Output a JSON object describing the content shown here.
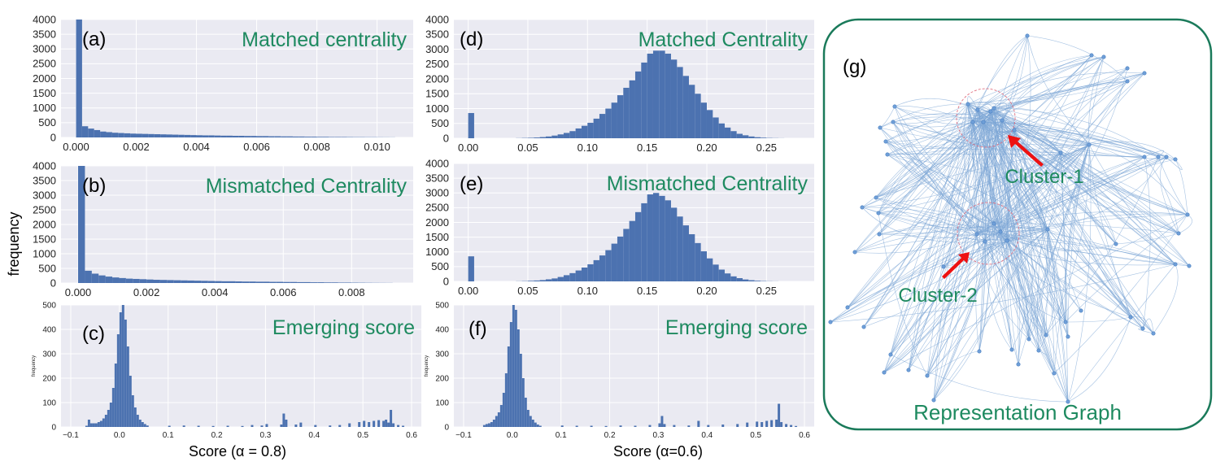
{
  "figure": {
    "shared_ylabel": "frequency",
    "bottom_left_xlabel": "Score (α = 0.8)",
    "bottom_right_xlabel": "Score (α=0.6)"
  },
  "colors": {
    "bar": "#4c72b0",
    "plot_bg": "#eaeaf2",
    "grid": "#ffffff",
    "title": "#1e8a60",
    "graph_border": "#1a7a5a",
    "edge": "#7ea6d6",
    "node": "#6f9fd8",
    "arrow": "#ee1111",
    "cluster_circle": "#e07080"
  },
  "chart_data": [
    {
      "panel": "(a)",
      "type": "bar",
      "title": "Matched centrality",
      "xlim": [
        -0.0005,
        0.0112
      ],
      "ylim": [
        0,
        4000
      ],
      "xticks": [
        "0.000",
        "0.002",
        "0.004",
        "0.006",
        "0.008",
        "0.010"
      ],
      "yticks": [
        "0",
        "500",
        "1000",
        "1500",
        "2000",
        "2500",
        "3000",
        "3500",
        "4000"
      ],
      "bin_width": 0.0002,
      "bins": [
        [
          0.0,
          4000
        ],
        [
          0.0002,
          380
        ],
        [
          0.0004,
          300
        ],
        [
          0.0006,
          250
        ],
        [
          0.0008,
          200
        ],
        [
          0.001,
          180
        ],
        [
          0.0012,
          160
        ],
        [
          0.0014,
          150
        ],
        [
          0.0016,
          140
        ],
        [
          0.0018,
          130
        ],
        [
          0.002,
          125
        ],
        [
          0.0022,
          120
        ],
        [
          0.0024,
          115
        ],
        [
          0.0026,
          110
        ],
        [
          0.0028,
          105
        ],
        [
          0.003,
          100
        ],
        [
          0.0032,
          95
        ],
        [
          0.0034,
          90
        ],
        [
          0.0036,
          85
        ],
        [
          0.0038,
          80
        ],
        [
          0.004,
          75
        ],
        [
          0.0042,
          70
        ],
        [
          0.0044,
          70
        ],
        [
          0.0046,
          65
        ],
        [
          0.0048,
          60
        ],
        [
          0.005,
          60
        ],
        [
          0.0052,
          55
        ],
        [
          0.0054,
          55
        ],
        [
          0.0056,
          50
        ],
        [
          0.0058,
          50
        ],
        [
          0.006,
          45
        ],
        [
          0.0062,
          45
        ],
        [
          0.0064,
          40
        ],
        [
          0.0066,
          40
        ],
        [
          0.0068,
          35
        ],
        [
          0.007,
          35
        ],
        [
          0.0072,
          30
        ],
        [
          0.0074,
          30
        ],
        [
          0.0076,
          25
        ],
        [
          0.0078,
          25
        ],
        [
          0.008,
          20
        ],
        [
          0.0082,
          20
        ],
        [
          0.0084,
          15
        ],
        [
          0.0086,
          15
        ],
        [
          0.0088,
          15
        ],
        [
          0.009,
          12
        ],
        [
          0.0092,
          10
        ],
        [
          0.0094,
          10
        ],
        [
          0.0096,
          8
        ],
        [
          0.0098,
          8
        ],
        [
          0.01,
          6
        ],
        [
          0.0102,
          5
        ],
        [
          0.0104,
          4
        ]
      ]
    },
    {
      "panel": "(b)",
      "type": "bar",
      "title": "Mismatched Centrality",
      "xlim": [
        -0.0005,
        0.0098
      ],
      "ylim": [
        0,
        4000
      ],
      "xticks": [
        "0.000",
        "0.002",
        "0.004",
        "0.006",
        "0.008"
      ],
      "yticks": [
        "0",
        "500",
        "1000",
        "1500",
        "2000",
        "2500",
        "3000",
        "3500",
        "4000"
      ],
      "bin_width": 0.0002,
      "bins": [
        [
          0.0,
          4000
        ],
        [
          0.0002,
          420
        ],
        [
          0.0004,
          320
        ],
        [
          0.0006,
          260
        ],
        [
          0.0008,
          220
        ],
        [
          0.001,
          190
        ],
        [
          0.0012,
          170
        ],
        [
          0.0014,
          150
        ],
        [
          0.0016,
          140
        ],
        [
          0.0018,
          130
        ],
        [
          0.002,
          120
        ],
        [
          0.0022,
          110
        ],
        [
          0.0024,
          105
        ],
        [
          0.0026,
          100
        ],
        [
          0.0028,
          95
        ],
        [
          0.003,
          90
        ],
        [
          0.0032,
          85
        ],
        [
          0.0034,
          80
        ],
        [
          0.0036,
          75
        ],
        [
          0.0038,
          70
        ],
        [
          0.004,
          65
        ],
        [
          0.0042,
          60
        ],
        [
          0.0044,
          60
        ],
        [
          0.0046,
          55
        ],
        [
          0.0048,
          50
        ],
        [
          0.005,
          50
        ],
        [
          0.0052,
          45
        ],
        [
          0.0054,
          45
        ],
        [
          0.0056,
          40
        ],
        [
          0.0058,
          40
        ],
        [
          0.006,
          35
        ],
        [
          0.0062,
          35
        ],
        [
          0.0064,
          30
        ],
        [
          0.0066,
          30
        ],
        [
          0.0068,
          25
        ],
        [
          0.007,
          25
        ],
        [
          0.0072,
          20
        ],
        [
          0.0074,
          20
        ],
        [
          0.0076,
          15
        ],
        [
          0.0078,
          15
        ],
        [
          0.008,
          12
        ],
        [
          0.0082,
          10
        ],
        [
          0.0084,
          8
        ],
        [
          0.0086,
          6
        ],
        [
          0.0088,
          5
        ],
        [
          0.009,
          4
        ]
      ]
    },
    {
      "panel": "(c)",
      "type": "bar",
      "title": "Emerging score",
      "xlim": [
        -0.12,
        0.62
      ],
      "ylim": [
        0,
        500
      ],
      "small_ylabel": "frequency",
      "xticks": [
        "−0.1",
        "0.0",
        "0.1",
        "0.2",
        "0.3",
        "0.4",
        "0.5",
        "0.6"
      ],
      "yticks": [
        "0",
        "100",
        "200",
        "300",
        "400",
        "500"
      ],
      "bin_width": 0.005,
      "bins": [
        [
          -0.07,
          5
        ],
        [
          -0.065,
          30
        ],
        [
          -0.06,
          15
        ],
        [
          -0.055,
          15
        ],
        [
          -0.05,
          15
        ],
        [
          -0.045,
          20
        ],
        [
          -0.04,
          25
        ],
        [
          -0.035,
          35
        ],
        [
          -0.03,
          50
        ],
        [
          -0.025,
          70
        ],
        [
          -0.02,
          100
        ],
        [
          -0.015,
          160
        ],
        [
          -0.01,
          260
        ],
        [
          -0.005,
          380
        ],
        [
          0.0,
          470
        ],
        [
          0.005,
          500
        ],
        [
          0.01,
          440
        ],
        [
          0.015,
          330
        ],
        [
          0.02,
          210
        ],
        [
          0.025,
          130
        ],
        [
          0.03,
          80
        ],
        [
          0.035,
          50
        ],
        [
          0.04,
          30
        ],
        [
          0.045,
          20
        ],
        [
          0.05,
          12
        ],
        [
          0.055,
          6
        ],
        [
          0.1,
          5
        ],
        [
          0.13,
          6
        ],
        [
          0.16,
          5
        ],
        [
          0.19,
          4
        ],
        [
          0.22,
          5
        ],
        [
          0.25,
          4
        ],
        [
          0.27,
          8
        ],
        [
          0.29,
          6
        ],
        [
          0.3,
          12
        ],
        [
          0.33,
          10
        ],
        [
          0.335,
          55
        ],
        [
          0.34,
          30
        ],
        [
          0.36,
          10
        ],
        [
          0.37,
          18
        ],
        [
          0.4,
          8
        ],
        [
          0.43,
          6
        ],
        [
          0.45,
          8
        ],
        [
          0.47,
          15
        ],
        [
          0.49,
          20
        ],
        [
          0.5,
          25
        ],
        [
          0.51,
          20
        ],
        [
          0.52,
          25
        ],
        [
          0.53,
          28
        ],
        [
          0.54,
          25
        ],
        [
          0.545,
          30
        ],
        [
          0.55,
          18
        ],
        [
          0.555,
          70
        ],
        [
          0.56,
          15
        ],
        [
          0.57,
          8
        ],
        [
          0.58,
          5
        ]
      ]
    },
    {
      "panel": "(d)",
      "type": "bar",
      "title": "Matched Centrality",
      "xlim": [
        -0.012,
        0.29
      ],
      "ylim": [
        0,
        4000
      ],
      "xticks": [
        "0.00",
        "0.05",
        "0.10",
        "0.15",
        "0.20",
        "0.25"
      ],
      "yticks": [
        "0",
        "500",
        "1000",
        "1500",
        "2000",
        "2500",
        "3000",
        "3500",
        "4000"
      ],
      "bin_width": 0.005,
      "bins": [
        [
          0.0,
          850
        ],
        [
          0.04,
          5
        ],
        [
          0.045,
          10
        ],
        [
          0.05,
          15
        ],
        [
          0.055,
          25
        ],
        [
          0.06,
          40
        ],
        [
          0.065,
          60
        ],
        [
          0.07,
          90
        ],
        [
          0.075,
          130
        ],
        [
          0.08,
          180
        ],
        [
          0.085,
          240
        ],
        [
          0.09,
          330
        ],
        [
          0.095,
          420
        ],
        [
          0.1,
          520
        ],
        [
          0.105,
          660
        ],
        [
          0.11,
          820
        ],
        [
          0.115,
          1000
        ],
        [
          0.12,
          1200
        ],
        [
          0.125,
          1450
        ],
        [
          0.13,
          1700
        ],
        [
          0.135,
          1950
        ],
        [
          0.14,
          2250
        ],
        [
          0.145,
          2550
        ],
        [
          0.15,
          2850
        ],
        [
          0.155,
          2950
        ],
        [
          0.16,
          2950
        ],
        [
          0.165,
          2850
        ],
        [
          0.17,
          2650
        ],
        [
          0.175,
          2400
        ],
        [
          0.18,
          2100
        ],
        [
          0.185,
          1800
        ],
        [
          0.19,
          1500
        ],
        [
          0.195,
          1200
        ],
        [
          0.2,
          950
        ],
        [
          0.205,
          700
        ],
        [
          0.21,
          500
        ],
        [
          0.215,
          360
        ],
        [
          0.22,
          240
        ],
        [
          0.225,
          150
        ],
        [
          0.23,
          100
        ],
        [
          0.235,
          60
        ],
        [
          0.24,
          35
        ],
        [
          0.245,
          20
        ],
        [
          0.25,
          10
        ],
        [
          0.255,
          6
        ],
        [
          0.26,
          3
        ]
      ]
    },
    {
      "panel": "(e)",
      "type": "bar",
      "title": "Mismatched Centrality",
      "xlim": [
        -0.012,
        0.29
      ],
      "ylim": [
        0,
        4000
      ],
      "xticks": [
        "0.00",
        "0.05",
        "0.10",
        "0.15",
        "0.20",
        "0.25"
      ],
      "yticks": [
        "0",
        "500",
        "1000",
        "1500",
        "2000",
        "2500",
        "3000",
        "3500",
        "4000"
      ],
      "bin_width": 0.005,
      "bins": [
        [
          0.0,
          850
        ],
        [
          0.04,
          5
        ],
        [
          0.045,
          10
        ],
        [
          0.05,
          20
        ],
        [
          0.055,
          30
        ],
        [
          0.06,
          45
        ],
        [
          0.065,
          70
        ],
        [
          0.07,
          100
        ],
        [
          0.075,
          150
        ],
        [
          0.08,
          210
        ],
        [
          0.085,
          280
        ],
        [
          0.09,
          370
        ],
        [
          0.095,
          470
        ],
        [
          0.1,
          580
        ],
        [
          0.105,
          720
        ],
        [
          0.11,
          880
        ],
        [
          0.115,
          1060
        ],
        [
          0.12,
          1280
        ],
        [
          0.125,
          1520
        ],
        [
          0.13,
          1780
        ],
        [
          0.135,
          2050
        ],
        [
          0.14,
          2350
        ],
        [
          0.145,
          2650
        ],
        [
          0.15,
          2950
        ],
        [
          0.155,
          3000
        ],
        [
          0.16,
          2900
        ],
        [
          0.165,
          2750
        ],
        [
          0.17,
          2500
        ],
        [
          0.175,
          2200
        ],
        [
          0.18,
          1900
        ],
        [
          0.185,
          1600
        ],
        [
          0.19,
          1300
        ],
        [
          0.195,
          1020
        ],
        [
          0.2,
          780
        ],
        [
          0.205,
          570
        ],
        [
          0.21,
          400
        ],
        [
          0.215,
          270
        ],
        [
          0.22,
          170
        ],
        [
          0.225,
          110
        ],
        [
          0.23,
          65
        ],
        [
          0.235,
          40
        ],
        [
          0.24,
          22
        ],
        [
          0.245,
          12
        ],
        [
          0.25,
          6
        ],
        [
          0.255,
          3
        ]
      ]
    },
    {
      "panel": "(f)",
      "type": "bar",
      "title": "Emerging score",
      "xlim": [
        -0.12,
        0.62
      ],
      "ylim": [
        0,
        500
      ],
      "small_ylabel": "frequency",
      "xticks": [
        "−0.1",
        "0.0",
        "0.1",
        "0.2",
        "0.3",
        "0.4",
        "0.5",
        "0.6"
      ],
      "yticks": [
        "0",
        "100",
        "200",
        "300",
        "400",
        "500"
      ],
      "bin_width": 0.005,
      "bins": [
        [
          -0.06,
          8
        ],
        [
          -0.055,
          12
        ],
        [
          -0.05,
          15
        ],
        [
          -0.045,
          20
        ],
        [
          -0.04,
          30
        ],
        [
          -0.035,
          45
        ],
        [
          -0.03,
          60
        ],
        [
          -0.025,
          90
        ],
        [
          -0.02,
          140
        ],
        [
          -0.015,
          220
        ],
        [
          -0.01,
          330
        ],
        [
          -0.005,
          430
        ],
        [
          0.0,
          500
        ],
        [
          0.005,
          480
        ],
        [
          0.01,
          400
        ],
        [
          0.015,
          300
        ],
        [
          0.02,
          200
        ],
        [
          0.025,
          120
        ],
        [
          0.03,
          70
        ],
        [
          0.035,
          45
        ],
        [
          0.04,
          30
        ],
        [
          0.045,
          18
        ],
        [
          0.05,
          10
        ],
        [
          0.055,
          5
        ],
        [
          0.1,
          6
        ],
        [
          0.13,
          5
        ],
        [
          0.16,
          5
        ],
        [
          0.19,
          4
        ],
        [
          0.22,
          6
        ],
        [
          0.25,
          5
        ],
        [
          0.28,
          8
        ],
        [
          0.3,
          15
        ],
        [
          0.305,
          45
        ],
        [
          0.31,
          12
        ],
        [
          0.33,
          8
        ],
        [
          0.36,
          6
        ],
        [
          0.38,
          25
        ],
        [
          0.4,
          8
        ],
        [
          0.43,
          10
        ],
        [
          0.46,
          12
        ],
        [
          0.48,
          18
        ],
        [
          0.5,
          22
        ],
        [
          0.51,
          20
        ],
        [
          0.52,
          25
        ],
        [
          0.53,
          28
        ],
        [
          0.54,
          30
        ],
        [
          0.545,
          95
        ],
        [
          0.55,
          20
        ],
        [
          0.56,
          12
        ],
        [
          0.57,
          8
        ],
        [
          0.58,
          4
        ]
      ]
    }
  ],
  "graph": {
    "label": "(g)",
    "title": "Representation Graph",
    "cluster_labels": [
      "Cluster-1",
      "Cluster-2"
    ]
  }
}
